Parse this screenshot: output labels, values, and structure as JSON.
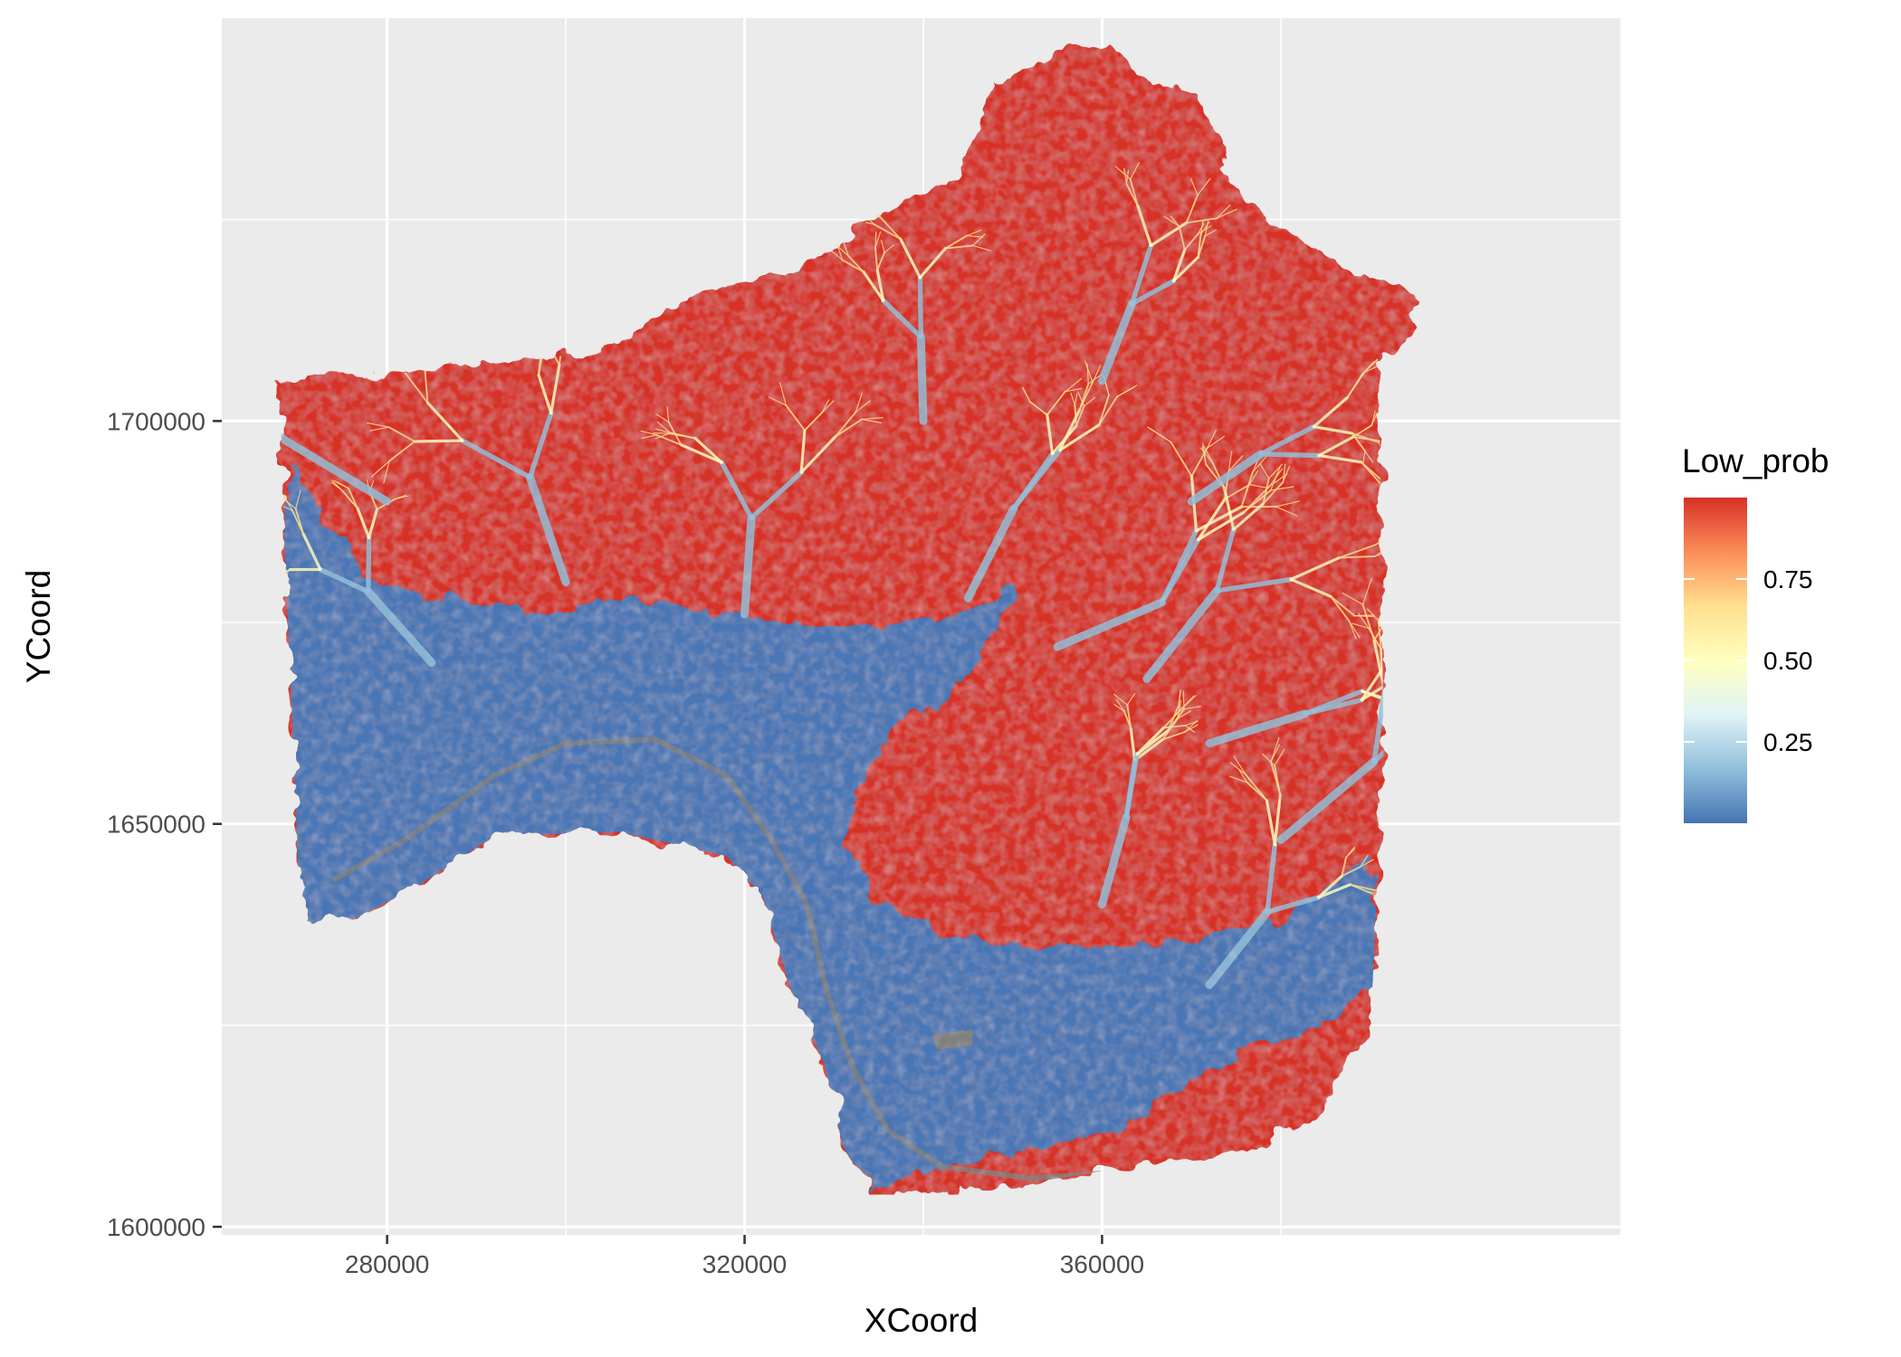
{
  "chart_data": {
    "type": "heatmap",
    "title": "",
    "xlabel": "XCoord",
    "ylabel": "YCoord",
    "x_ticks": [
      280000,
      320000,
      360000
    ],
    "y_ticks": [
      1600000,
      1650000,
      1700000
    ],
    "x_tick_labels": [
      "280000",
      "320000",
      "360000"
    ],
    "y_tick_labels": [
      "1600000",
      "1650000",
      "1700000"
    ],
    "xlim": [
      261500,
      418000
    ],
    "ylim": [
      1599000,
      1750000
    ],
    "grid": true,
    "panel_background": "#ebebeb",
    "legend": {
      "title": "Low_prob",
      "placement": "right",
      "breaks": [
        0.25,
        0.5,
        0.75
      ],
      "labels": [
        "0.25",
        "0.50",
        "0.75"
      ],
      "range": [
        0,
        1
      ],
      "colors": [
        "#4575b4",
        "#91bfdb",
        "#e0f3f8",
        "#ffffbf",
        "#fee090",
        "#fc8d59",
        "#d73027"
      ]
    },
    "raster": {
      "high_color": "#d73027",
      "low_color": "#4a76b5",
      "na_color": "#7f7f7f",
      "region_outline": [
        [
          268000,
          1704800
        ],
        [
          282000,
          1706000
        ],
        [
          303000,
          1708500
        ],
        [
          309000,
          1712000
        ],
        [
          316000,
          1716500
        ],
        [
          324000,
          1718000
        ],
        [
          330000,
          1722000
        ],
        [
          336000,
          1726500
        ],
        [
          344000,
          1730000
        ],
        [
          347000,
          1738000
        ],
        [
          347500,
          1743000
        ],
        [
          350000,
          1742500
        ],
        [
          355000,
          1746000
        ],
        [
          361000,
          1747000
        ],
        [
          364000,
          1743000
        ],
        [
          371000,
          1741000
        ],
        [
          373000,
          1734000
        ],
        [
          377000,
          1726000
        ],
        [
          387000,
          1719000
        ],
        [
          394000,
          1716500
        ],
        [
          396000,
          1712000
        ],
        [
          391000,
          1708000
        ],
        [
          391500,
          1658000
        ],
        [
          390000,
          1624000
        ],
        [
          387000,
          1620000
        ],
        [
          384000,
          1613000
        ],
        [
          376000,
          1609500
        ],
        [
          363000,
          1607500
        ],
        [
          347000,
          1604500
        ],
        [
          334000,
          1604000
        ],
        [
          331000,
          1610000
        ],
        [
          329000,
          1620000
        ],
        [
          325000,
          1630000
        ],
        [
          322000,
          1641000
        ],
        [
          318000,
          1646000
        ],
        [
          306000,
          1649000
        ],
        [
          292000,
          1648500
        ],
        [
          283000,
          1642000
        ],
        [
          276000,
          1638000
        ],
        [
          271000,
          1637500
        ],
        [
          270000,
          1645000
        ],
        [
          269500,
          1660000
        ],
        [
          268500,
          1685000
        ]
      ],
      "lowland_outline": [
        [
          269000,
          1695000
        ],
        [
          278000,
          1680000
        ],
        [
          288000,
          1678000
        ],
        [
          296000,
          1676000
        ],
        [
          306000,
          1678000
        ],
        [
          318000,
          1676000
        ],
        [
          330000,
          1674000
        ],
        [
          345000,
          1676000
        ],
        [
          351000,
          1680000
        ],
        [
          344000,
          1667000
        ],
        [
          337000,
          1662000
        ],
        [
          333000,
          1656000
        ],
        [
          331000,
          1648000
        ],
        [
          335000,
          1640000
        ],
        [
          343000,
          1636000
        ],
        [
          352000,
          1634500
        ],
        [
          366000,
          1635000
        ],
        [
          380000,
          1638000
        ],
        [
          390000,
          1646000
        ],
        [
          391000,
          1630000
        ],
        [
          383000,
          1624000
        ],
        [
          376000,
          1622000
        ],
        [
          370000,
          1618000
        ],
        [
          362000,
          1612000
        ],
        [
          350000,
          1609000
        ],
        [
          340000,
          1607000
        ],
        [
          334000,
          1604500
        ],
        [
          331000,
          1610000
        ],
        [
          329000,
          1620000
        ],
        [
          325000,
          1630000
        ],
        [
          322000,
          1641000
        ],
        [
          318000,
          1646000
        ],
        [
          306000,
          1649000
        ],
        [
          292000,
          1648500
        ],
        [
          283000,
          1642000
        ],
        [
          276000,
          1638000
        ],
        [
          271000,
          1637500
        ],
        [
          270000,
          1645000
        ],
        [
          269500,
          1660000
        ],
        [
          268500,
          1685000
        ]
      ],
      "river_path": [
        [
          274000,
          1643000
        ],
        [
          282000,
          1648000
        ],
        [
          292000,
          1656000
        ],
        [
          300000,
          1660000
        ],
        [
          310000,
          1660500
        ],
        [
          318000,
          1656000
        ],
        [
          323000,
          1648000
        ],
        [
          327000,
          1640000
        ],
        [
          329000,
          1630000
        ],
        [
          332000,
          1620000
        ],
        [
          336000,
          1612000
        ],
        [
          342000,
          1607500
        ],
        [
          352000,
          1606000
        ],
        [
          365000,
          1607000
        ]
      ],
      "na_patch": [
        [
          341000,
          1623800
        ],
        [
          345500,
          1624500
        ],
        [
          345500,
          1622500
        ],
        [
          341500,
          1622000
        ]
      ]
    }
  }
}
